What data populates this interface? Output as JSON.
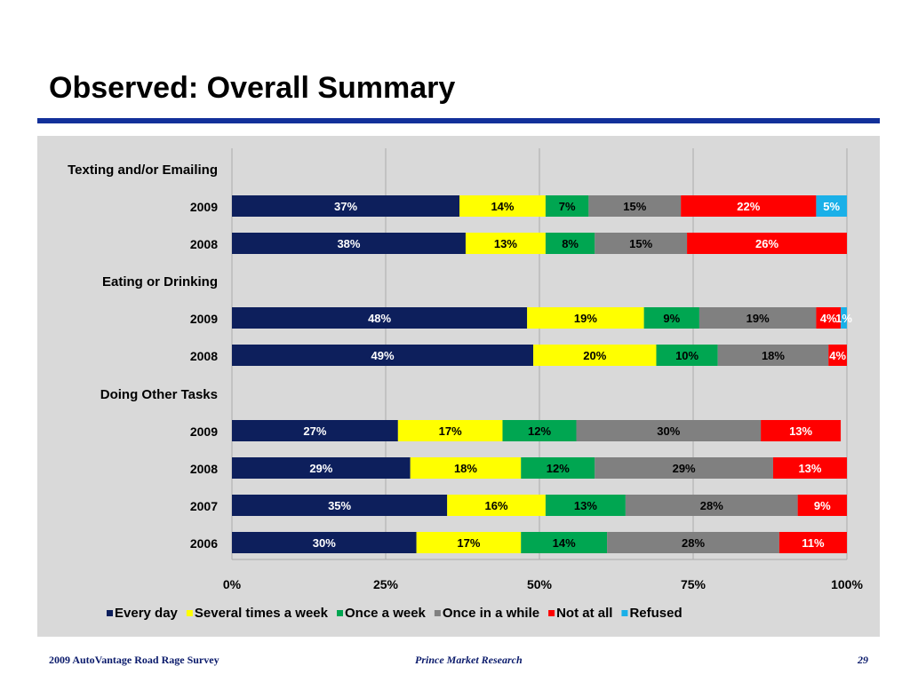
{
  "slide": {
    "title": "Observed: Overall Summary"
  },
  "footer": {
    "left": "2009 AutoVantage Road Rage Survey",
    "center": "Prince Market Research",
    "page": "29"
  },
  "colors": {
    "title_rule": "#12309a",
    "panel_bg": "#d9d9d9",
    "gridline": "#b3b3b3"
  },
  "chart_data": {
    "type": "bar",
    "orientation": "horizontal",
    "stacked": "percent",
    "xlim": [
      0,
      100
    ],
    "x_ticks": [
      "0%",
      "25%",
      "50%",
      "75%",
      "100%"
    ],
    "grid": true,
    "legend_position": "bottom",
    "series": [
      {
        "name": "Every day",
        "color": "#0d1f5c",
        "label_color": "#ffffff"
      },
      {
        "name": "Several times a week",
        "color": "#ffff00",
        "label_color": "#000000"
      },
      {
        "name": "Once a week",
        "color": "#00a651",
        "label_color": "#000000"
      },
      {
        "name": "Once in a while",
        "color": "#808080",
        "label_color": "#000000"
      },
      {
        "name": "Not at all",
        "color": "#ff0000",
        "label_color": "#ffffff"
      },
      {
        "name": "Refused",
        "color": "#1ab0e8",
        "label_color": "#ffffff"
      }
    ],
    "rows": [
      {
        "kind": "header",
        "label": "Texting and/or Emailing"
      },
      {
        "kind": "bar",
        "label": "2009",
        "values": [
          37,
          14,
          7,
          15,
          22,
          5
        ],
        "labels": [
          "37%",
          "14%",
          "7%",
          "15%",
          "22%",
          "5%"
        ]
      },
      {
        "kind": "bar",
        "label": "2008",
        "values": [
          38,
          13,
          8,
          15,
          26,
          0
        ],
        "labels": [
          "38%",
          "13%",
          "8%",
          "15%",
          "26%",
          ""
        ]
      },
      {
        "kind": "header",
        "label": "Eating or Drinking"
      },
      {
        "kind": "bar",
        "label": "2009",
        "values": [
          48,
          19,
          9,
          19,
          4,
          1
        ],
        "labels": [
          "48%",
          "19%",
          "9%",
          "19%",
          "4%",
          "1%"
        ]
      },
      {
        "kind": "bar",
        "label": "2008",
        "values": [
          49,
          20,
          10,
          18,
          4,
          0
        ],
        "labels": [
          "49%",
          "20%",
          "10%",
          "18%",
          "4%",
          ""
        ]
      },
      {
        "kind": "header",
        "label": "Doing Other Tasks"
      },
      {
        "kind": "bar",
        "label": "2009",
        "values": [
          27,
          17,
          12,
          30,
          13,
          0
        ],
        "labels": [
          "27%",
          "17%",
          "12%",
          "30%",
          "13%",
          ""
        ]
      },
      {
        "kind": "bar",
        "label": "2008",
        "values": [
          29,
          18,
          12,
          29,
          13,
          0
        ],
        "labels": [
          "29%",
          "18%",
          "12%",
          "29%",
          "13%",
          ""
        ]
      },
      {
        "kind": "bar",
        "label": "2007",
        "values": [
          35,
          16,
          13,
          28,
          9,
          0
        ],
        "labels": [
          "35%",
          "16%",
          "13%",
          "28%",
          "9%",
          ""
        ]
      },
      {
        "kind": "bar",
        "label": "2006",
        "values": [
          30,
          17,
          14,
          28,
          11,
          0
        ],
        "labels": [
          "30%",
          "17%",
          "14%",
          "28%",
          "11%",
          ""
        ]
      }
    ]
  }
}
